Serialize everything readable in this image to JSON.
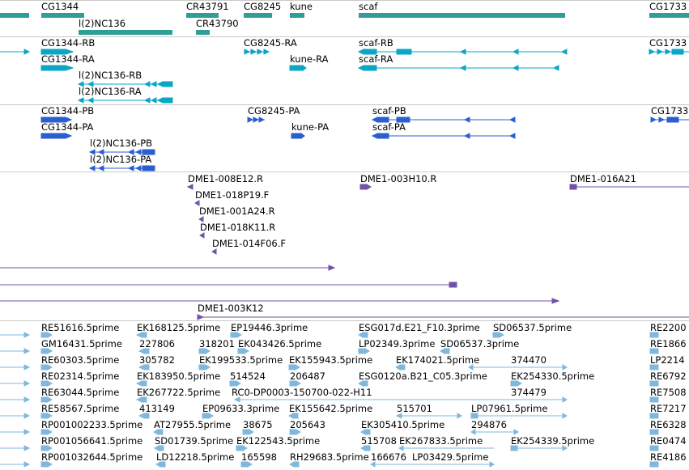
{
  "colors": {
    "gene": "#2f9e98",
    "transcript": "#0aa6c4",
    "protein": "#2b5fd0",
    "clone": "#7152a8",
    "est": "#7fb8dc",
    "separator": "#c9c9c9"
  },
  "tracks": {
    "genes": {
      "labels": [
        "CG1344",
        "CR43791",
        "CG8245",
        "kune",
        "scaf",
        "CG1733",
        "l(2)NC136",
        "CR43790"
      ]
    },
    "transcripts": {
      "labels": [
        "CG1344-RB",
        "CG8245-RA",
        "scaf-RB",
        "CG1733",
        "CG1344-RA",
        "kune-RA",
        "scaf-RA",
        "l(2)NC136-RB",
        "l(2)NC136-RA"
      ]
    },
    "proteins": {
      "labels": [
        "CG1344-PB",
        "CG8245-PA",
        "scaf-PB",
        "CG1733",
        "CG1344-PA",
        "kune-PA",
        "scaf-PA",
        "l(2)NC136-PB",
        "l(2)NC136-PA"
      ]
    },
    "clones": {
      "labels": [
        "DME1-008E12.R",
        "DME1-003H10.R",
        "DME1-016A21",
        "DME1-018P19.F",
        "DME1-001A24.R",
        "DME1-018K11.R",
        "DME1-014F06.F",
        "DME1-003K12"
      ]
    },
    "ests": {
      "labels": [
        "RE51616.5prime",
        "EK168125.5prime",
        "EP19446.3prime",
        "ESG017d.E21_F10.3prime",
        "SD06537.5prime",
        "RE2200",
        "GM16431.5prime",
        "227806",
        "318201",
        "EK043426.5prime",
        "LP02349.3prime",
        "SD06537.3prime",
        "RE1866",
        "RE60303.5prime",
        "305782",
        "EK199533.5prime",
        "EK155943.5prime",
        "EK174021.5prime",
        "374470",
        "LP2214",
        "RE02314.5prime",
        "EK183950.5prime",
        "514524",
        "206487",
        "ESG0120a.B21_C05.3prime",
        "EK254330.5prime",
        "RE6792",
        "RE63044.5prime",
        "EK267722.5prime",
        "RC0-DP0003-150700-022-H11",
        "374479",
        "RE7508",
        "RE58567.5prime",
        "413149",
        "EP09633.3prime",
        "EK155642.5prime",
        "515701",
        "LP07961.5prime",
        "RE7217",
        "RP001002233.5prime",
        "AT27955.5prime",
        "38675",
        "205643",
        "EK305410.5prime",
        "294876",
        "RE6328",
        "RP001056641.5prime",
        "SD01739.5prime",
        "EK122543.5prime",
        "515708",
        "EK267833.5prime",
        "EK254339.5prime",
        "RE0474",
        "RP001032644.5prime",
        "LD12218.5prime",
        "165598",
        "RH29683.5prime",
        "166676",
        "LP03429.5prime",
        "RE4186"
      ]
    }
  }
}
